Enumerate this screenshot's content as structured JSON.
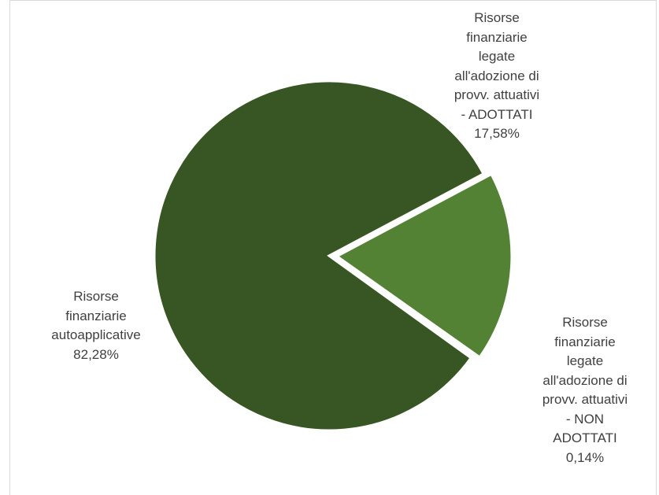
{
  "chart_data": {
    "type": "pie",
    "title": "",
    "slices": [
      {
        "label_lines": [
          "Risorse",
          "finanziarie",
          "legate",
          "all'adozione di",
          "provv. attuativi",
          "- ADOTTATI"
        ],
        "value": 17.58,
        "value_text": "17,58%",
        "color": "#548235",
        "exploded": true
      },
      {
        "label_lines": [
          "Risorse",
          "finanziarie",
          "legate",
          "all'adozione di",
          "provv. attuativi",
          "- NON",
          "ADOTTATI"
        ],
        "value": 0.14,
        "value_text": "0,14%",
        "color": "#4a7a2f",
        "exploded": true
      },
      {
        "label_lines": [
          "Risorse",
          "finanziarie",
          "autoapplicative"
        ],
        "value": 82.28,
        "value_text": "82,28%",
        "color": "#375623",
        "exploded": false
      }
    ],
    "start_angle_deg": 62,
    "direction": "clockwise",
    "legend": "none",
    "labels_position": "outside"
  }
}
